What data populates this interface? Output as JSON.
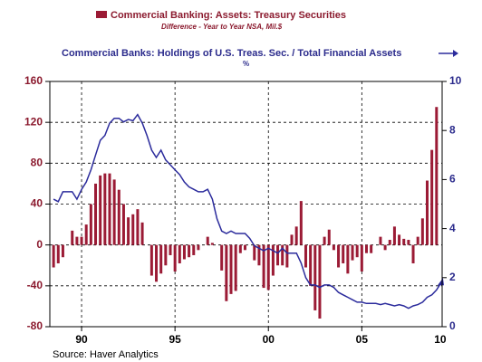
{
  "chart_data": {
    "type": "bar_line",
    "series": [
      {
        "name": "Commercial Banking: Assets: Treasury Securities",
        "units": "Difference - Year to Year   NSA, Mil.$",
        "type": "bar",
        "color": "#9b1b35",
        "axis": "y",
        "x": [
          1988.5,
          1988.75,
          1989,
          1989.25,
          1989.5,
          1989.75,
          1990,
          1990.25,
          1990.5,
          1990.75,
          1991,
          1991.25,
          1991.5,
          1991.75,
          1992,
          1992.25,
          1992.5,
          1992.75,
          1993,
          1993.25,
          1993.5,
          1993.75,
          1994,
          1994.25,
          1994.5,
          1994.75,
          1995,
          1995.25,
          1995.5,
          1995.75,
          1996,
          1996.25,
          1996.5,
          1996.75,
          1997,
          1997.25,
          1997.5,
          1997.75,
          1998,
          1998.25,
          1998.5,
          1998.75,
          1999,
          1999.25,
          1999.5,
          1999.75,
          2000,
          2000.25,
          2000.5,
          2000.75,
          2001,
          2001.25,
          2001.5,
          2001.75,
          2002,
          2002.25,
          2002.5,
          2002.75,
          2003,
          2003.25,
          2003.5,
          2003.75,
          2004,
          2004.25,
          2004.5,
          2004.75,
          2005,
          2005.25,
          2005.5,
          2005.75,
          2006,
          2006.25,
          2006.5,
          2006.75,
          2007,
          2007.25,
          2007.5,
          2007.75,
          2008,
          2008.25,
          2008.5,
          2008.75,
          2009
        ],
        "values": [
          -22,
          -18,
          -12,
          0,
          14,
          8,
          8,
          20,
          40,
          60,
          68,
          70,
          70,
          64,
          54,
          40,
          27,
          30,
          35,
          22,
          0,
          -30,
          -36,
          -28,
          -20,
          -10,
          -26,
          -18,
          -14,
          -12,
          -10,
          -5,
          0,
          8,
          2,
          0,
          -25,
          -55,
          -48,
          -45,
          -8,
          -5,
          0,
          -15,
          -20,
          -42,
          -44,
          -30,
          -20,
          -20,
          -22,
          10,
          18,
          43,
          -22,
          -40,
          -64,
          -72,
          8,
          15,
          -5,
          -22,
          -18,
          -28,
          -15,
          -12,
          -26,
          -8,
          -8,
          0,
          8,
          -5,
          5,
          18,
          10,
          6,
          5,
          -18,
          8,
          26,
          63,
          93,
          135
        ]
      },
      {
        "name": "Commercial Banks: Holdings of U.S. Treas. Sec. / Total Financial Assets",
        "units": "%",
        "type": "line",
        "color": "#2b2b9c",
        "axis": "y2",
        "x": [
          1988.5,
          1988.75,
          1989,
          1989.25,
          1989.5,
          1989.75,
          1990,
          1990.25,
          1990.5,
          1990.75,
          1991,
          1991.25,
          1991.5,
          1991.75,
          1992,
          1992.25,
          1992.5,
          1992.75,
          1993,
          1993.25,
          1993.5,
          1993.75,
          1994,
          1994.25,
          1994.5,
          1994.75,
          1995,
          1995.25,
          1995.5,
          1995.75,
          1996,
          1996.25,
          1996.5,
          1996.75,
          1997,
          1997.25,
          1997.5,
          1997.75,
          1998,
          1998.25,
          1998.5,
          1998.75,
          1999,
          1999.25,
          1999.5,
          1999.75,
          2000,
          2000.25,
          2000.5,
          2000.75,
          2001,
          2001.25,
          2001.5,
          2001.75,
          2002,
          2002.25,
          2002.5,
          2002.75,
          2003,
          2003.25,
          2003.5,
          2003.75,
          2004,
          2004.25,
          2004.5,
          2004.75,
          2005,
          2005.25,
          2005.5,
          2005.75,
          2006,
          2006.25,
          2006.5,
          2006.75,
          2007,
          2007.25,
          2007.5,
          2007.75,
          2008,
          2008.25,
          2008.5,
          2008.75,
          2009,
          2009.25
        ],
        "values": [
          5.2,
          5.1,
          5.5,
          5.5,
          5.5,
          5.2,
          5.6,
          5.9,
          6.4,
          7.0,
          7.6,
          7.8,
          8.3,
          8.5,
          8.5,
          8.35,
          8.45,
          8.4,
          8.65,
          8.3,
          7.8,
          7.2,
          6.9,
          7.2,
          6.8,
          6.6,
          6.4,
          6.2,
          5.9,
          5.7,
          5.6,
          5.5,
          5.5,
          5.6,
          5.2,
          4.4,
          3.9,
          3.8,
          3.9,
          3.8,
          3.8,
          3.8,
          3.6,
          3.3,
          3.2,
          3.1,
          3.2,
          3.1,
          3.0,
          3.2,
          3.0,
          3.0,
          3.0,
          2.6,
          2.0,
          1.7,
          1.7,
          1.6,
          1.7,
          1.7,
          1.6,
          1.4,
          1.3,
          1.2,
          1.1,
          1.0,
          1.0,
          0.95,
          0.95,
          0.95,
          0.9,
          0.95,
          0.9,
          0.85,
          0.9,
          0.85,
          0.75,
          0.85,
          0.9,
          1.0,
          1.2,
          1.3,
          1.5,
          1.8
        ]
      }
    ],
    "xlim": [
      1988.3,
      2009.3
    ],
    "xticks": [
      {
        "value": 1990,
        "label": "90"
      },
      {
        "value": 1995,
        "label": "95"
      },
      {
        "value": 2000,
        "label": "00"
      },
      {
        "value": 2005,
        "label": "05"
      },
      {
        "value": 2009.2,
        "label": "10"
      }
    ],
    "xgrid": [
      1990,
      1995,
      2000,
      2005
    ],
    "ylim": [
      -80,
      160
    ],
    "yticks": [
      160,
      120,
      80,
      40,
      0,
      -40,
      -80
    ],
    "y2lim": [
      0,
      10
    ],
    "y2ticks": [
      10,
      8,
      6,
      4,
      2,
      0
    ],
    "grid": true,
    "source": "Source: Haver Analytics"
  }
}
